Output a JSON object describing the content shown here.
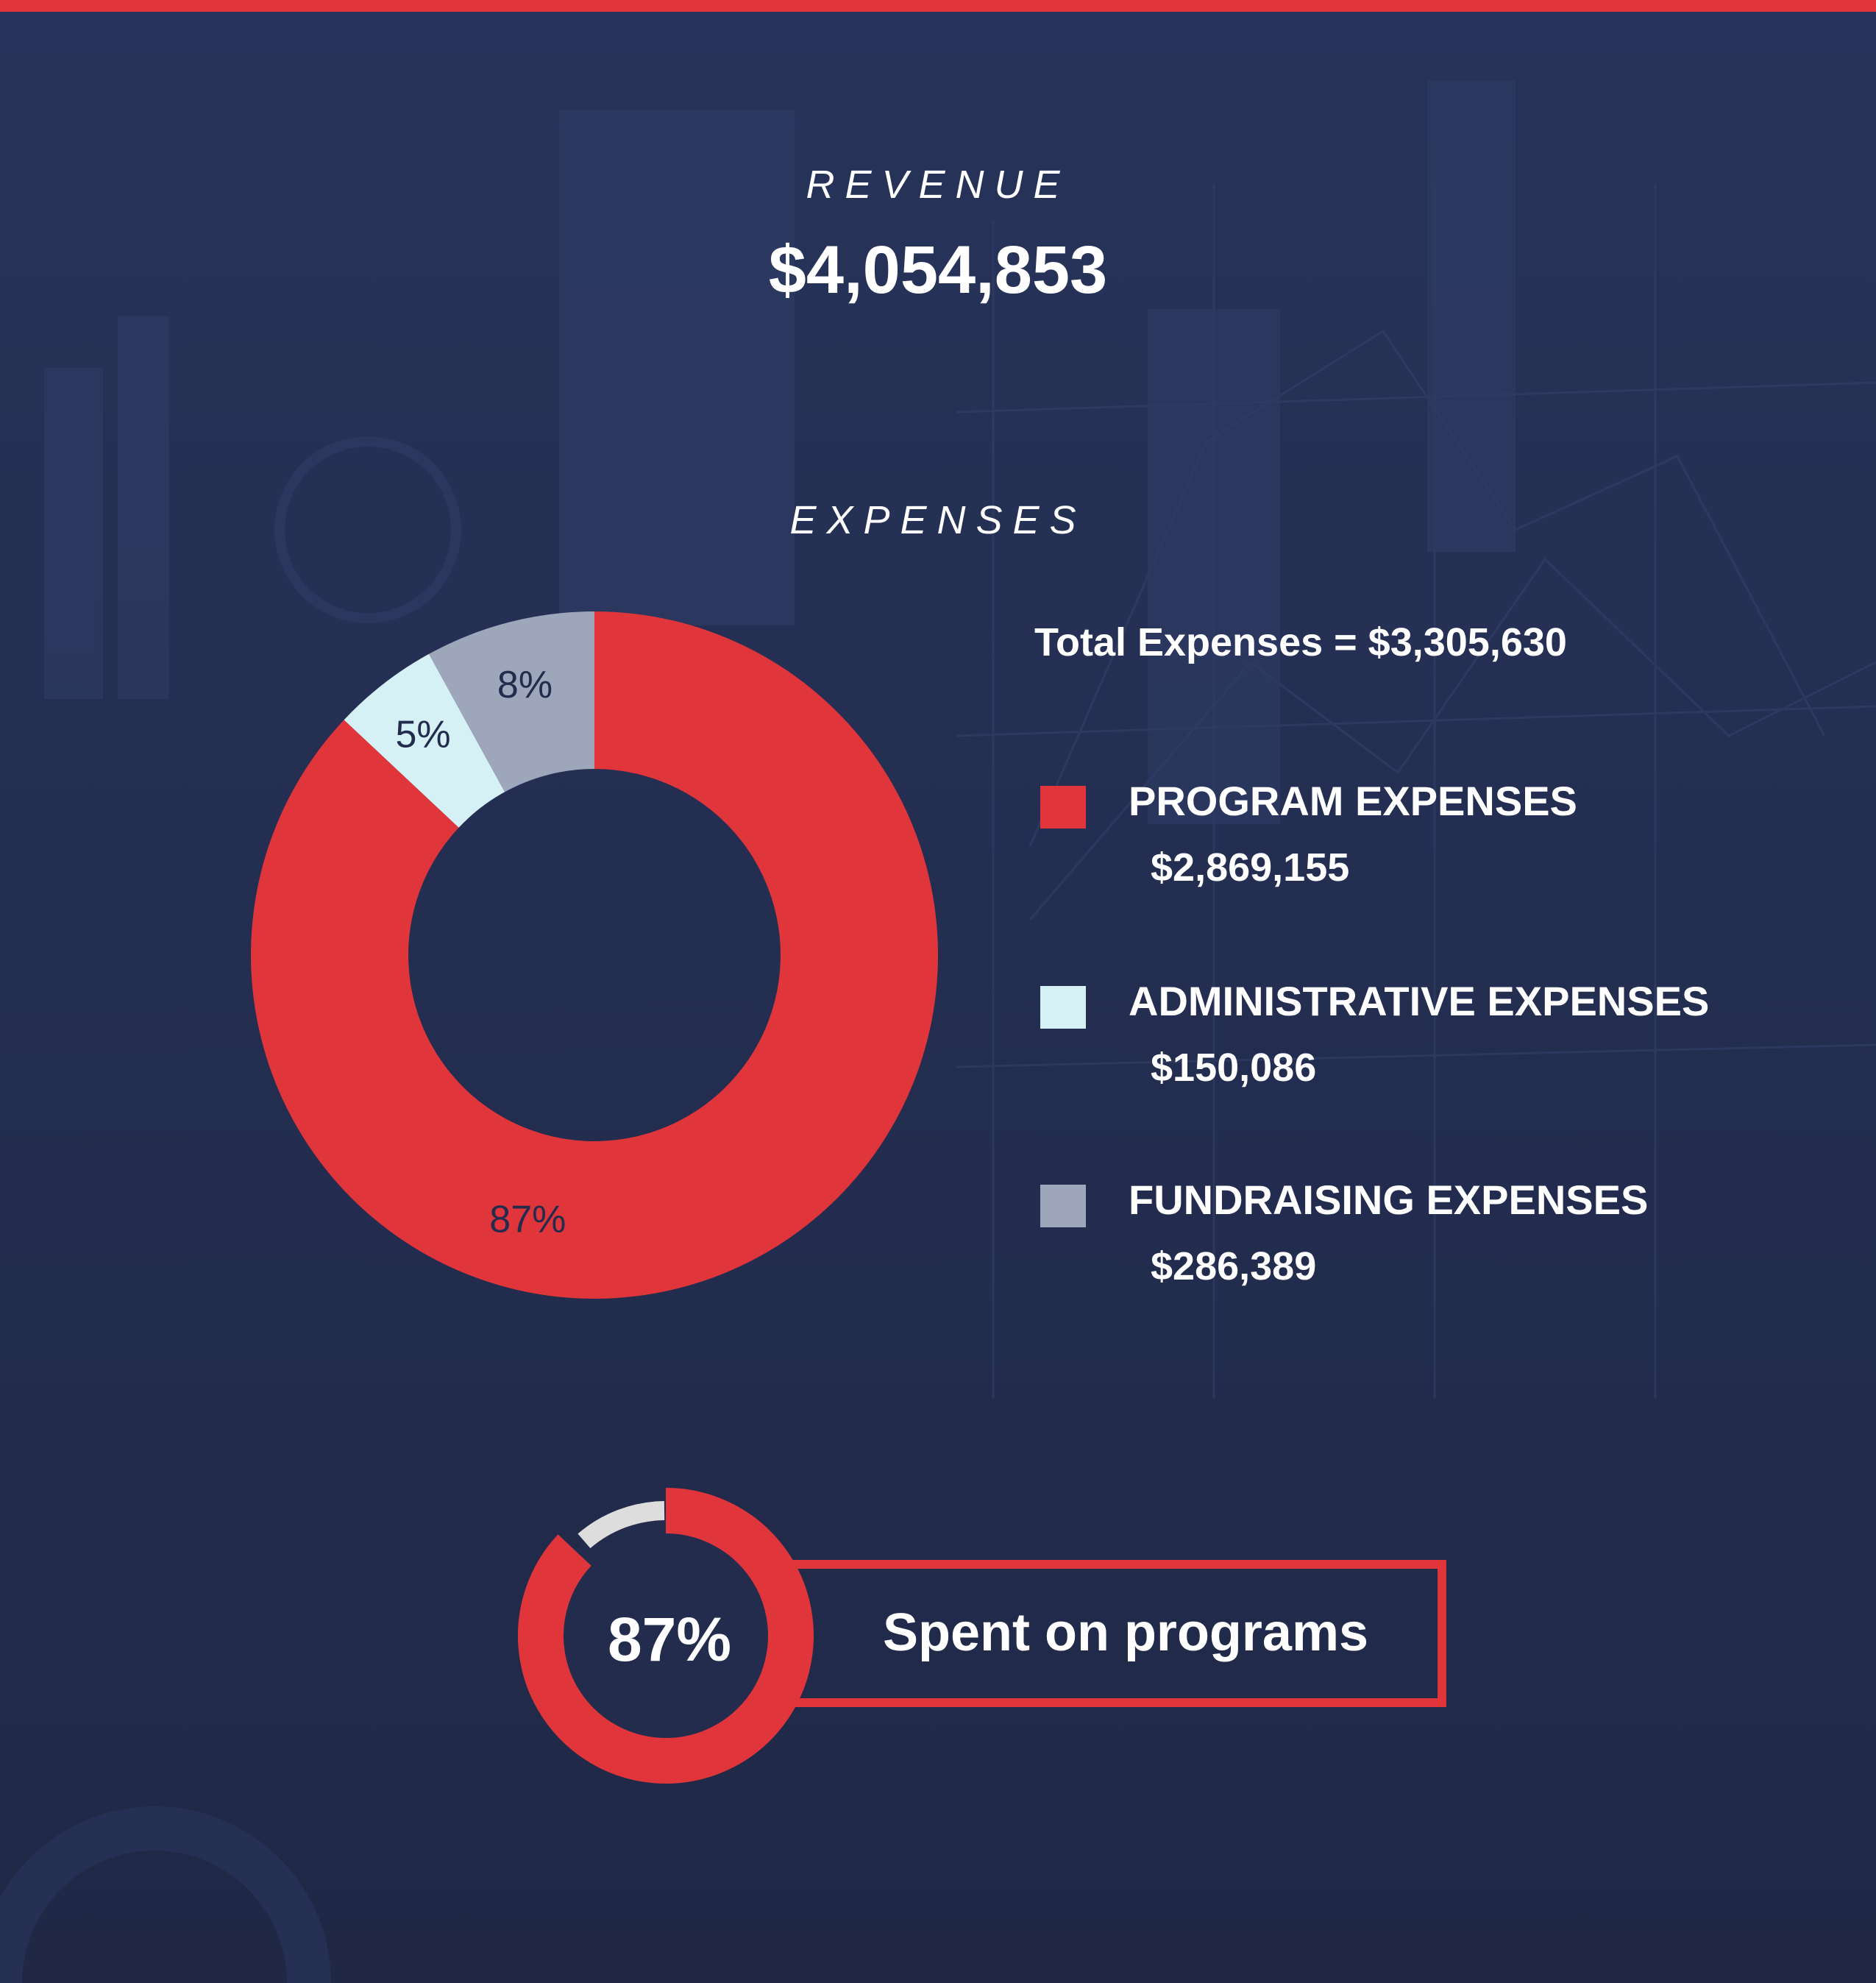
{
  "revenue": {
    "label": "REVENUE",
    "value": "$4,054,853"
  },
  "expenses": {
    "label": "EXPENSES",
    "total": "Total Expenses = $3,305,630"
  },
  "chart_data": {
    "type": "pie",
    "categories": [
      "PROGRAM EXPENSES",
      "ADMINISTRATIVE EXPENSES",
      "FUNDRAISING EXPENSES"
    ],
    "values": [
      87,
      5,
      8
    ],
    "slice_labels": [
      "87%",
      "5%",
      "8%"
    ],
    "amounts": [
      "$2,869,155",
      "$150,086",
      "$286,389"
    ],
    "colors": [
      "#e0363b",
      "#d6f1f5",
      "#9ea6bb"
    ],
    "legend": "right"
  },
  "summary": {
    "percent_label": "87%",
    "fraction": 0.87,
    "text": "Spent on programs"
  },
  "colors": {
    "background": "#242c4e",
    "accent": "#e0363b",
    "ring_track": "#dddddd"
  }
}
